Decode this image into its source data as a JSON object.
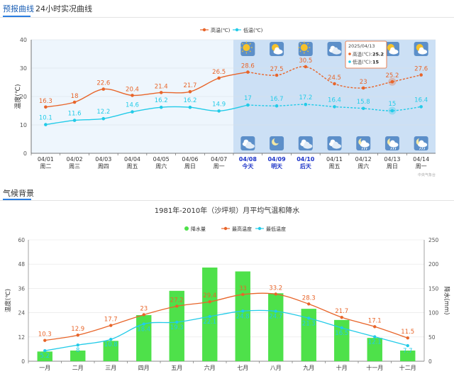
{
  "tabs": [
    {
      "label": "预报曲线",
      "active": true
    },
    {
      "label": "24小时实况曲线",
      "active": false
    }
  ],
  "forecast_chart": {
    "legend": [
      "高温(℃)",
      "低温(℃)"
    ],
    "ylabel": "温度(℃)",
    "yticks": [
      "0",
      "10",
      "20",
      "30",
      "40"
    ],
    "watermark": "中央气象台",
    "dates": [
      "04/01",
      "04/02",
      "04/03",
      "04/04",
      "04/05",
      "04/06",
      "04/07",
      "04/08",
      "04/09",
      "04/10",
      "04/11",
      "04/12",
      "04/13",
      "04/14"
    ],
    "weekdays": [
      "周二",
      "周三",
      "周四",
      "周五",
      "周六",
      "周日",
      "周一",
      "今天",
      "明天",
      "后天",
      "周五",
      "周六",
      "周日",
      "周一"
    ],
    "day_icons": [
      "sunny-icon",
      "partly-cloudy-icon",
      "sunny-icon",
      "cloudy-icon",
      "partly-cloudy-icon",
      "partly-cloudy-icon",
      "partly-cloudy-icon"
    ],
    "night_icons": [
      "cloudy-night-icon",
      "clear-night-icon",
      "cloudy-night-icon",
      "cloudy-night-icon",
      "rain-night-icon",
      "rain-night-icon",
      "rain-night-icon"
    ],
    "tooltip": {
      "title": "2025/04/13",
      "high_label": "高温(℃):",
      "high_value": "25.2",
      "low_label": "低温(℃):",
      "low_value": "15"
    },
    "colors": {
      "high": "#e8652a",
      "low": "#22cbe8",
      "history_bg": "#eef6fd",
      "forecast_bg": "#cce0f5",
      "today": "#1c33c8"
    }
  },
  "climate_section": {
    "title": "气候背景"
  },
  "climate_chart": {
    "title": "1981年-2010年（沙坪坝）月平均气温和降水",
    "legend": [
      "降水量",
      "最高温度",
      "最低温度"
    ],
    "ylabel_left": "温度(℃)",
    "ylabel_right": "降水(mm)",
    "yticks_left": [
      "0",
      "12",
      "24",
      "36",
      "48",
      "60"
    ],
    "yticks_right": [
      "0",
      "50",
      "100",
      "150",
      "200",
      "250"
    ],
    "colors": {
      "bar": "#4ee14a",
      "high": "#e8652a",
      "low": "#22cbe8"
    }
  },
  "chart_data": [
    {
      "type": "line",
      "x": [
        "04/01",
        "04/02",
        "04/03",
        "04/04",
        "04/05",
        "04/06",
        "04/07",
        "04/08",
        "04/09",
        "04/10",
        "04/11",
        "04/12",
        "04/13",
        "04/14"
      ],
      "series": [
        {
          "name": "高温(℃)",
          "values": [
            16.3,
            18,
            22.6,
            20.4,
            21.4,
            21.7,
            26.5,
            28.6,
            27.5,
            30.5,
            24.5,
            23,
            25.2,
            27.6
          ]
        },
        {
          "name": "低温(℃)",
          "values": [
            10.1,
            11.6,
            12.2,
            14.6,
            16.2,
            16.2,
            14.9,
            17,
            16.7,
            17.2,
            16.4,
            15.8,
            15,
            16.4
          ]
        }
      ],
      "ylabel": "温度(℃)",
      "ylim": [
        0,
        40
      ],
      "forecast_start": "04/08"
    },
    {
      "type": "bar",
      "title": "1981年-2010年（沙坪坝）月平均气温和降水",
      "categories": [
        "一月",
        "二月",
        "三月",
        "四月",
        "五月",
        "六月",
        "七月",
        "八月",
        "九月",
        "十月",
        "十一月",
        "十二月"
      ],
      "series": [
        {
          "name": "降水量",
          "axis": "right",
          "values": [
            20,
            22,
            42,
            95,
            145,
            193,
            185,
            140,
            108,
            85,
            48,
            22
          ]
        },
        {
          "name": "最高温度",
          "axis": "left",
          "values": [
            10.3,
            12.9,
            17.7,
            23,
            27.2,
            29.4,
            33,
            33.2,
            28.3,
            21.7,
            17.1,
            11.5
          ]
        },
        {
          "name": "最低温度",
          "axis": "left",
          "values": [
            5.2,
            8,
            10.8,
            18.4,
            19.3,
            22.1,
            24.8,
            24.7,
            21.3,
            16.5,
            12.1,
            7.7
          ]
        }
      ],
      "ylabel": "温度(℃)",
      "ylabel_right": "降水(mm)",
      "ylim": [
        0,
        60
      ],
      "ylim_right": [
        0,
        250
      ]
    }
  ]
}
